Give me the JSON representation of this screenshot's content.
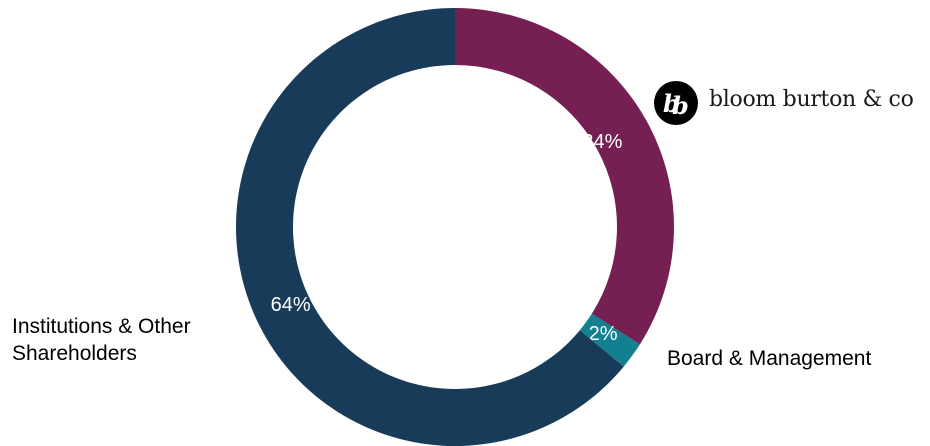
{
  "chart_data": {
    "type": "pie",
    "donut": true,
    "title": "",
    "slices": [
      {
        "label": "Board & Management",
        "value": 2,
        "display": "2%",
        "color": "#12808f"
      },
      {
        "label": "Institutions & Other Shareholders",
        "value": 64,
        "display": "64%",
        "color": "#193b5a"
      },
      {
        "label": "",
        "value": 34,
        "display": "34%",
        "color": "#751f52"
      }
    ]
  },
  "labels": {
    "institutions": "Institutions & Other Shareholders",
    "board": "Board & Management"
  },
  "logo": {
    "text": "bloom burton & co",
    "icon": "bb-monogram-icon"
  }
}
